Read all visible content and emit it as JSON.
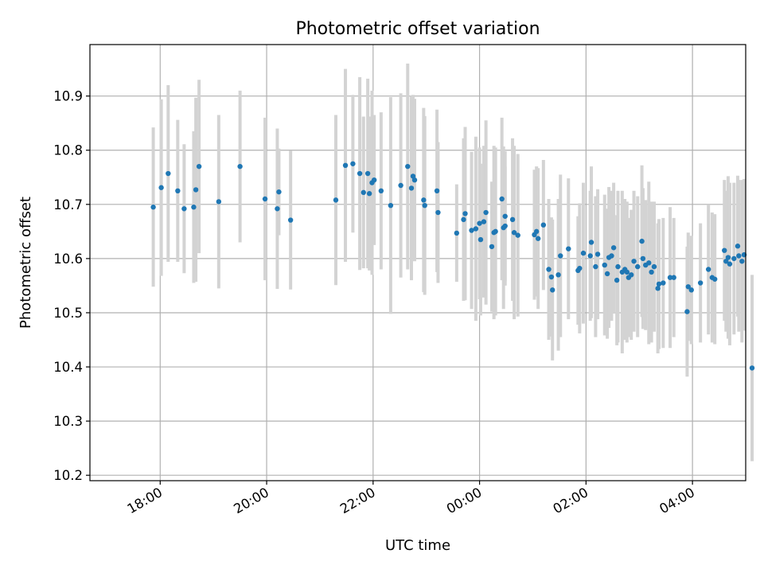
{
  "chart_data": {
    "type": "scatter",
    "title": "Photometric offset variation",
    "xlabel": "UTC time",
    "ylabel": "Photometric offset",
    "x_unit": "UTC time (hours; values past 24 are after midnight on the following day)",
    "xlim": [
      16.68,
      29.0
    ],
    "ylim": [
      10.19,
      10.995
    ],
    "x_ticks": [
      {
        "value": 18,
        "label": "18:00"
      },
      {
        "value": 20,
        "label": "20:00"
      },
      {
        "value": 22,
        "label": "22:00"
      },
      {
        "value": 24,
        "label": "00:00"
      },
      {
        "value": 26,
        "label": "02:00"
      },
      {
        "value": 28,
        "label": "04:00"
      }
    ],
    "y_ticks": [
      {
        "value": 10.2,
        "label": "10.2"
      },
      {
        "value": 10.3,
        "label": "10.3"
      },
      {
        "value": 10.4,
        "label": "10.4"
      },
      {
        "value": 10.5,
        "label": "10.5"
      },
      {
        "value": 10.6,
        "label": "10.6"
      },
      {
        "value": 10.7,
        "label": "10.7"
      },
      {
        "value": 10.8,
        "label": "10.8"
      },
      {
        "value": 10.9,
        "label": "10.9"
      }
    ],
    "grid": true,
    "marker_color": "#1f77b4",
    "errorbar_color": "#d3d3d3",
    "points": [
      [
        17.87,
        10.695,
        0.147
      ],
      [
        18.02,
        10.731,
        0.163
      ],
      [
        18.15,
        10.757,
        0.163
      ],
      [
        18.33,
        10.725,
        0.131
      ],
      [
        18.45,
        10.692,
        0.119
      ],
      [
        18.63,
        10.695,
        0.14
      ],
      [
        18.67,
        10.727,
        0.17
      ],
      [
        18.73,
        10.77,
        0.16
      ],
      [
        19.1,
        10.705,
        0.16
      ],
      [
        19.5,
        10.77,
        0.14
      ],
      [
        19.97,
        10.71,
        0.15
      ],
      [
        20.2,
        10.692,
        0.148
      ],
      [
        20.23,
        10.723,
        0.08
      ],
      [
        20.45,
        10.671,
        0.128
      ],
      [
        21.3,
        10.708,
        0.157
      ],
      [
        21.48,
        10.772,
        0.178
      ],
      [
        21.62,
        10.775,
        0.127
      ],
      [
        21.75,
        10.757,
        0.178
      ],
      [
        21.82,
        10.722,
        0.14
      ],
      [
        21.9,
        10.757,
        0.175
      ],
      [
        21.93,
        10.72,
        0.142
      ],
      [
        21.98,
        10.74,
        0.17
      ],
      [
        22.02,
        10.745,
        0.12
      ],
      [
        22.15,
        10.725,
        0.145
      ],
      [
        22.33,
        10.698,
        0.2
      ],
      [
        22.52,
        10.735,
        0.17
      ],
      [
        22.65,
        10.77,
        0.19
      ],
      [
        22.72,
        10.73,
        0.17
      ],
      [
        22.75,
        10.752,
        0.15
      ],
      [
        22.78,
        10.745,
        0.15
      ],
      [
        22.95,
        10.708,
        0.17
      ],
      [
        22.97,
        10.698,
        0.165
      ],
      [
        23.2,
        10.725,
        0.15
      ],
      [
        23.22,
        10.685,
        0.13
      ],
      [
        23.57,
        10.647,
        0.09
      ],
      [
        23.7,
        10.672,
        0.15
      ],
      [
        23.73,
        10.683,
        0.16
      ],
      [
        23.85,
        10.652,
        0.145
      ],
      [
        23.93,
        10.655,
        0.17
      ],
      [
        24.0,
        10.665,
        0.14
      ],
      [
        24.02,
        10.635,
        0.14
      ],
      [
        24.08,
        10.668,
        0.14
      ],
      [
        24.12,
        10.685,
        0.17
      ],
      [
        24.23,
        10.622,
        0.12
      ],
      [
        24.27,
        10.648,
        0.16
      ],
      [
        24.3,
        10.65,
        0.155
      ],
      [
        24.42,
        10.71,
        0.15
      ],
      [
        24.45,
        10.657,
        0.15
      ],
      [
        24.48,
        10.66,
        0.11
      ],
      [
        24.48,
        10.678,
        0.12
      ],
      [
        24.62,
        10.672,
        0.15
      ],
      [
        24.65,
        10.648,
        0.16
      ],
      [
        24.72,
        10.643,
        0.15
      ],
      [
        25.03,
        10.644,
        0.12
      ],
      [
        25.07,
        10.65,
        0.12
      ],
      [
        25.1,
        10.637,
        0.13
      ],
      [
        25.2,
        10.662,
        0.12
      ],
      [
        25.3,
        10.58,
        0.13
      ],
      [
        25.35,
        10.566,
        0.11
      ],
      [
        25.37,
        10.542,
        0.13
      ],
      [
        25.48,
        10.57,
        0.14
      ],
      [
        25.52,
        10.605,
        0.15
      ],
      [
        25.67,
        10.618,
        0.13
      ],
      [
        25.85,
        10.578,
        0.1
      ],
      [
        25.88,
        10.582,
        0.12
      ],
      [
        25.95,
        10.61,
        0.13
      ],
      [
        26.08,
        10.605,
        0.12
      ],
      [
        26.1,
        10.63,
        0.14
      ],
      [
        26.18,
        10.585,
        0.13
      ],
      [
        26.22,
        10.608,
        0.12
      ],
      [
        26.35,
        10.588,
        0.13
      ],
      [
        26.4,
        10.572,
        0.12
      ],
      [
        26.43,
        10.602,
        0.13
      ],
      [
        26.48,
        10.605,
        0.12
      ],
      [
        26.52,
        10.62,
        0.12
      ],
      [
        26.58,
        10.56,
        0.12
      ],
      [
        26.6,
        10.585,
        0.14
      ],
      [
        26.68,
        10.575,
        0.15
      ],
      [
        26.73,
        10.58,
        0.13
      ],
      [
        26.77,
        10.575,
        0.13
      ],
      [
        26.8,
        10.565,
        0.11
      ],
      [
        26.85,
        10.57,
        0.12
      ],
      [
        26.9,
        10.595,
        0.13
      ],
      [
        26.97,
        10.585,
        0.13
      ],
      [
        27.05,
        10.632,
        0.14
      ],
      [
        27.07,
        10.6,
        0.13
      ],
      [
        27.12,
        10.588,
        0.12
      ],
      [
        27.18,
        10.592,
        0.15
      ],
      [
        27.23,
        10.575,
        0.13
      ],
      [
        27.28,
        10.585,
        0.12
      ],
      [
        27.35,
        10.545,
        0.12
      ],
      [
        27.37,
        10.553,
        0.12
      ],
      [
        27.45,
        10.555,
        0.12
      ],
      [
        27.58,
        10.565,
        0.13
      ],
      [
        27.65,
        10.565,
        0.11
      ],
      [
        27.9,
        10.502,
        0.12
      ],
      [
        27.92,
        10.548,
        0.1
      ],
      [
        27.98,
        10.542,
        0.1
      ],
      [
        28.15,
        10.555,
        0.11
      ],
      [
        28.3,
        10.58,
        0.12
      ],
      [
        28.37,
        10.565,
        0.12
      ],
      [
        28.42,
        10.562,
        0.12
      ],
      [
        28.6,
        10.615,
        0.13
      ],
      [
        28.63,
        10.595,
        0.13
      ],
      [
        28.67,
        10.602,
        0.15
      ],
      [
        28.7,
        10.59,
        0.15
      ],
      [
        28.78,
        10.6,
        0.14
      ],
      [
        28.85,
        10.623,
        0.13
      ],
      [
        28.87,
        10.605,
        0.14
      ],
      [
        28.93,
        10.595,
        0.15
      ],
      [
        28.97,
        10.607,
        0.14
      ],
      [
        29.12,
        10.398,
        0.172
      ]
    ]
  }
}
